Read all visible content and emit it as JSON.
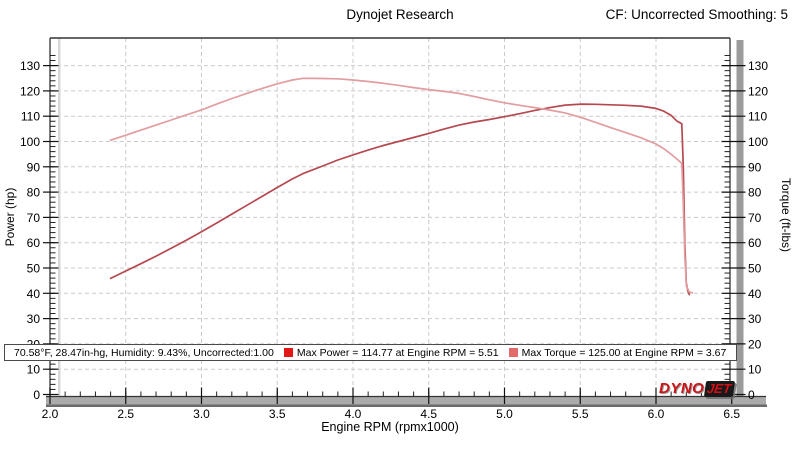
{
  "header": {
    "title": "Dynojet Research",
    "cf_label": "CF: Uncorrected Smoothing: 5"
  },
  "status_bar": {
    "environment": "70.58°F, 28.47in-hg, Humidity: 9.43%, Uncorrected:1.00",
    "max_power_label": "Max Power = 114.77 at Engine RPM = 5.51",
    "max_torque_label": "Max Torque = 125.00 at Engine RPM = 3.67"
  },
  "branding": {
    "logo_part1": "DYNO",
    "logo_part2": "JET"
  },
  "colors": {
    "legend_power": "#e01818",
    "legend_torque": "#e26a6a",
    "grid": "#cbcbcb",
    "axis_line": "#333333",
    "ruler_shadow": "#9b9b9b",
    "bar_gray": "#ababab",
    "bar_shadow": "#6a6a6a"
  },
  "chart_data": {
    "type": "line",
    "title": "Dynojet Research",
    "xlabel": "Engine RPM (rpmx1000)",
    "ylabel_left": "Power (hp)",
    "ylabel_right": "Torque (ft-lbs)",
    "x_range": [
      2.0,
      6.5
    ],
    "y_range": [
      0,
      135
    ],
    "x_major_ticks": [
      2.0,
      2.5,
      3.0,
      3.5,
      4.0,
      4.5,
      5.0,
      5.5,
      6.0,
      6.5
    ],
    "x_minor_step": 0.1,
    "y_major_ticks": [
      0,
      10,
      20,
      30,
      40,
      50,
      60,
      70,
      80,
      90,
      100,
      110,
      120,
      130
    ],
    "y_minor_step": 2,
    "grid": "dashed",
    "legend_position": "bottom status bar",
    "series": [
      {
        "name": "Power",
        "axis": "left",
        "units": "hp",
        "color": "#b6494f",
        "max_value": 114.77,
        "max_at_rpm": 5.51,
        "points": [
          [
            2.4,
            45.9
          ],
          [
            2.5,
            48.8
          ],
          [
            2.6,
            51.7
          ],
          [
            2.7,
            54.7
          ],
          [
            2.8,
            57.8
          ],
          [
            2.9,
            61.0
          ],
          [
            3.0,
            64.3
          ],
          [
            3.1,
            67.8
          ],
          [
            3.2,
            71.3
          ],
          [
            3.3,
            74.8
          ],
          [
            3.4,
            78.3
          ],
          [
            3.5,
            81.8
          ],
          [
            3.6,
            85.2
          ],
          [
            3.67,
            87.3
          ],
          [
            3.8,
            90.3
          ],
          [
            3.9,
            92.7
          ],
          [
            4.0,
            94.7
          ],
          [
            4.1,
            96.6
          ],
          [
            4.2,
            98.4
          ],
          [
            4.3,
            100.0
          ],
          [
            4.4,
            101.6
          ],
          [
            4.5,
            103.2
          ],
          [
            4.6,
            104.9
          ],
          [
            4.7,
            106.5
          ],
          [
            4.8,
            107.7
          ],
          [
            4.9,
            108.7
          ],
          [
            5.0,
            109.8
          ],
          [
            5.1,
            111.0
          ],
          [
            5.2,
            112.3
          ],
          [
            5.3,
            113.4
          ],
          [
            5.4,
            114.4
          ],
          [
            5.51,
            114.77
          ],
          [
            5.6,
            114.7
          ],
          [
            5.7,
            114.5
          ],
          [
            5.8,
            114.3
          ],
          [
            5.9,
            114.0
          ],
          [
            6.0,
            113.1
          ],
          [
            6.05,
            112.0
          ],
          [
            6.1,
            110.3
          ],
          [
            6.14,
            108.0
          ],
          [
            6.17,
            107.0
          ],
          [
            6.18,
            90.0
          ],
          [
            6.19,
            60.0
          ],
          [
            6.2,
            44.0
          ],
          [
            6.21,
            41.0
          ],
          [
            6.22,
            39.5
          ]
        ]
      },
      {
        "name": "Torque",
        "axis": "right",
        "units": "ft-lbs",
        "color": "#e29da1",
        "max_value": 125.0,
        "max_at_rpm": 3.67,
        "points": [
          [
            2.4,
            100.5
          ],
          [
            2.5,
            102.5
          ],
          [
            2.6,
            104.5
          ],
          [
            2.7,
            106.5
          ],
          [
            2.8,
            108.5
          ],
          [
            2.9,
            110.5
          ],
          [
            3.0,
            112.5
          ],
          [
            3.1,
            114.8
          ],
          [
            3.2,
            117.0
          ],
          [
            3.3,
            119.0
          ],
          [
            3.4,
            121.0
          ],
          [
            3.5,
            122.8
          ],
          [
            3.6,
            124.3
          ],
          [
            3.67,
            125.0
          ],
          [
            3.8,
            124.9
          ],
          [
            3.9,
            124.8
          ],
          [
            4.0,
            124.3
          ],
          [
            4.1,
            123.7
          ],
          [
            4.2,
            123.0
          ],
          [
            4.3,
            122.2
          ],
          [
            4.4,
            121.3
          ],
          [
            4.5,
            120.5
          ],
          [
            4.6,
            119.8
          ],
          [
            4.7,
            119.0
          ],
          [
            4.8,
            117.8
          ],
          [
            4.9,
            116.5
          ],
          [
            5.0,
            115.3
          ],
          [
            5.1,
            114.3
          ],
          [
            5.2,
            113.4
          ],
          [
            5.3,
            112.4
          ],
          [
            5.4,
            111.3
          ],
          [
            5.51,
            109.4
          ],
          [
            5.6,
            107.6
          ],
          [
            5.7,
            105.5
          ],
          [
            5.8,
            103.5
          ],
          [
            5.9,
            101.5
          ],
          [
            6.0,
            99.0
          ],
          [
            6.05,
            97.2
          ],
          [
            6.1,
            95.0
          ],
          [
            6.15,
            92.5
          ],
          [
            6.17,
            91.3
          ],
          [
            6.18,
            75.0
          ],
          [
            6.19,
            55.0
          ],
          [
            6.2,
            43.0
          ],
          [
            6.22,
            40.5
          ],
          [
            6.24,
            40.2
          ]
        ]
      }
    ]
  }
}
